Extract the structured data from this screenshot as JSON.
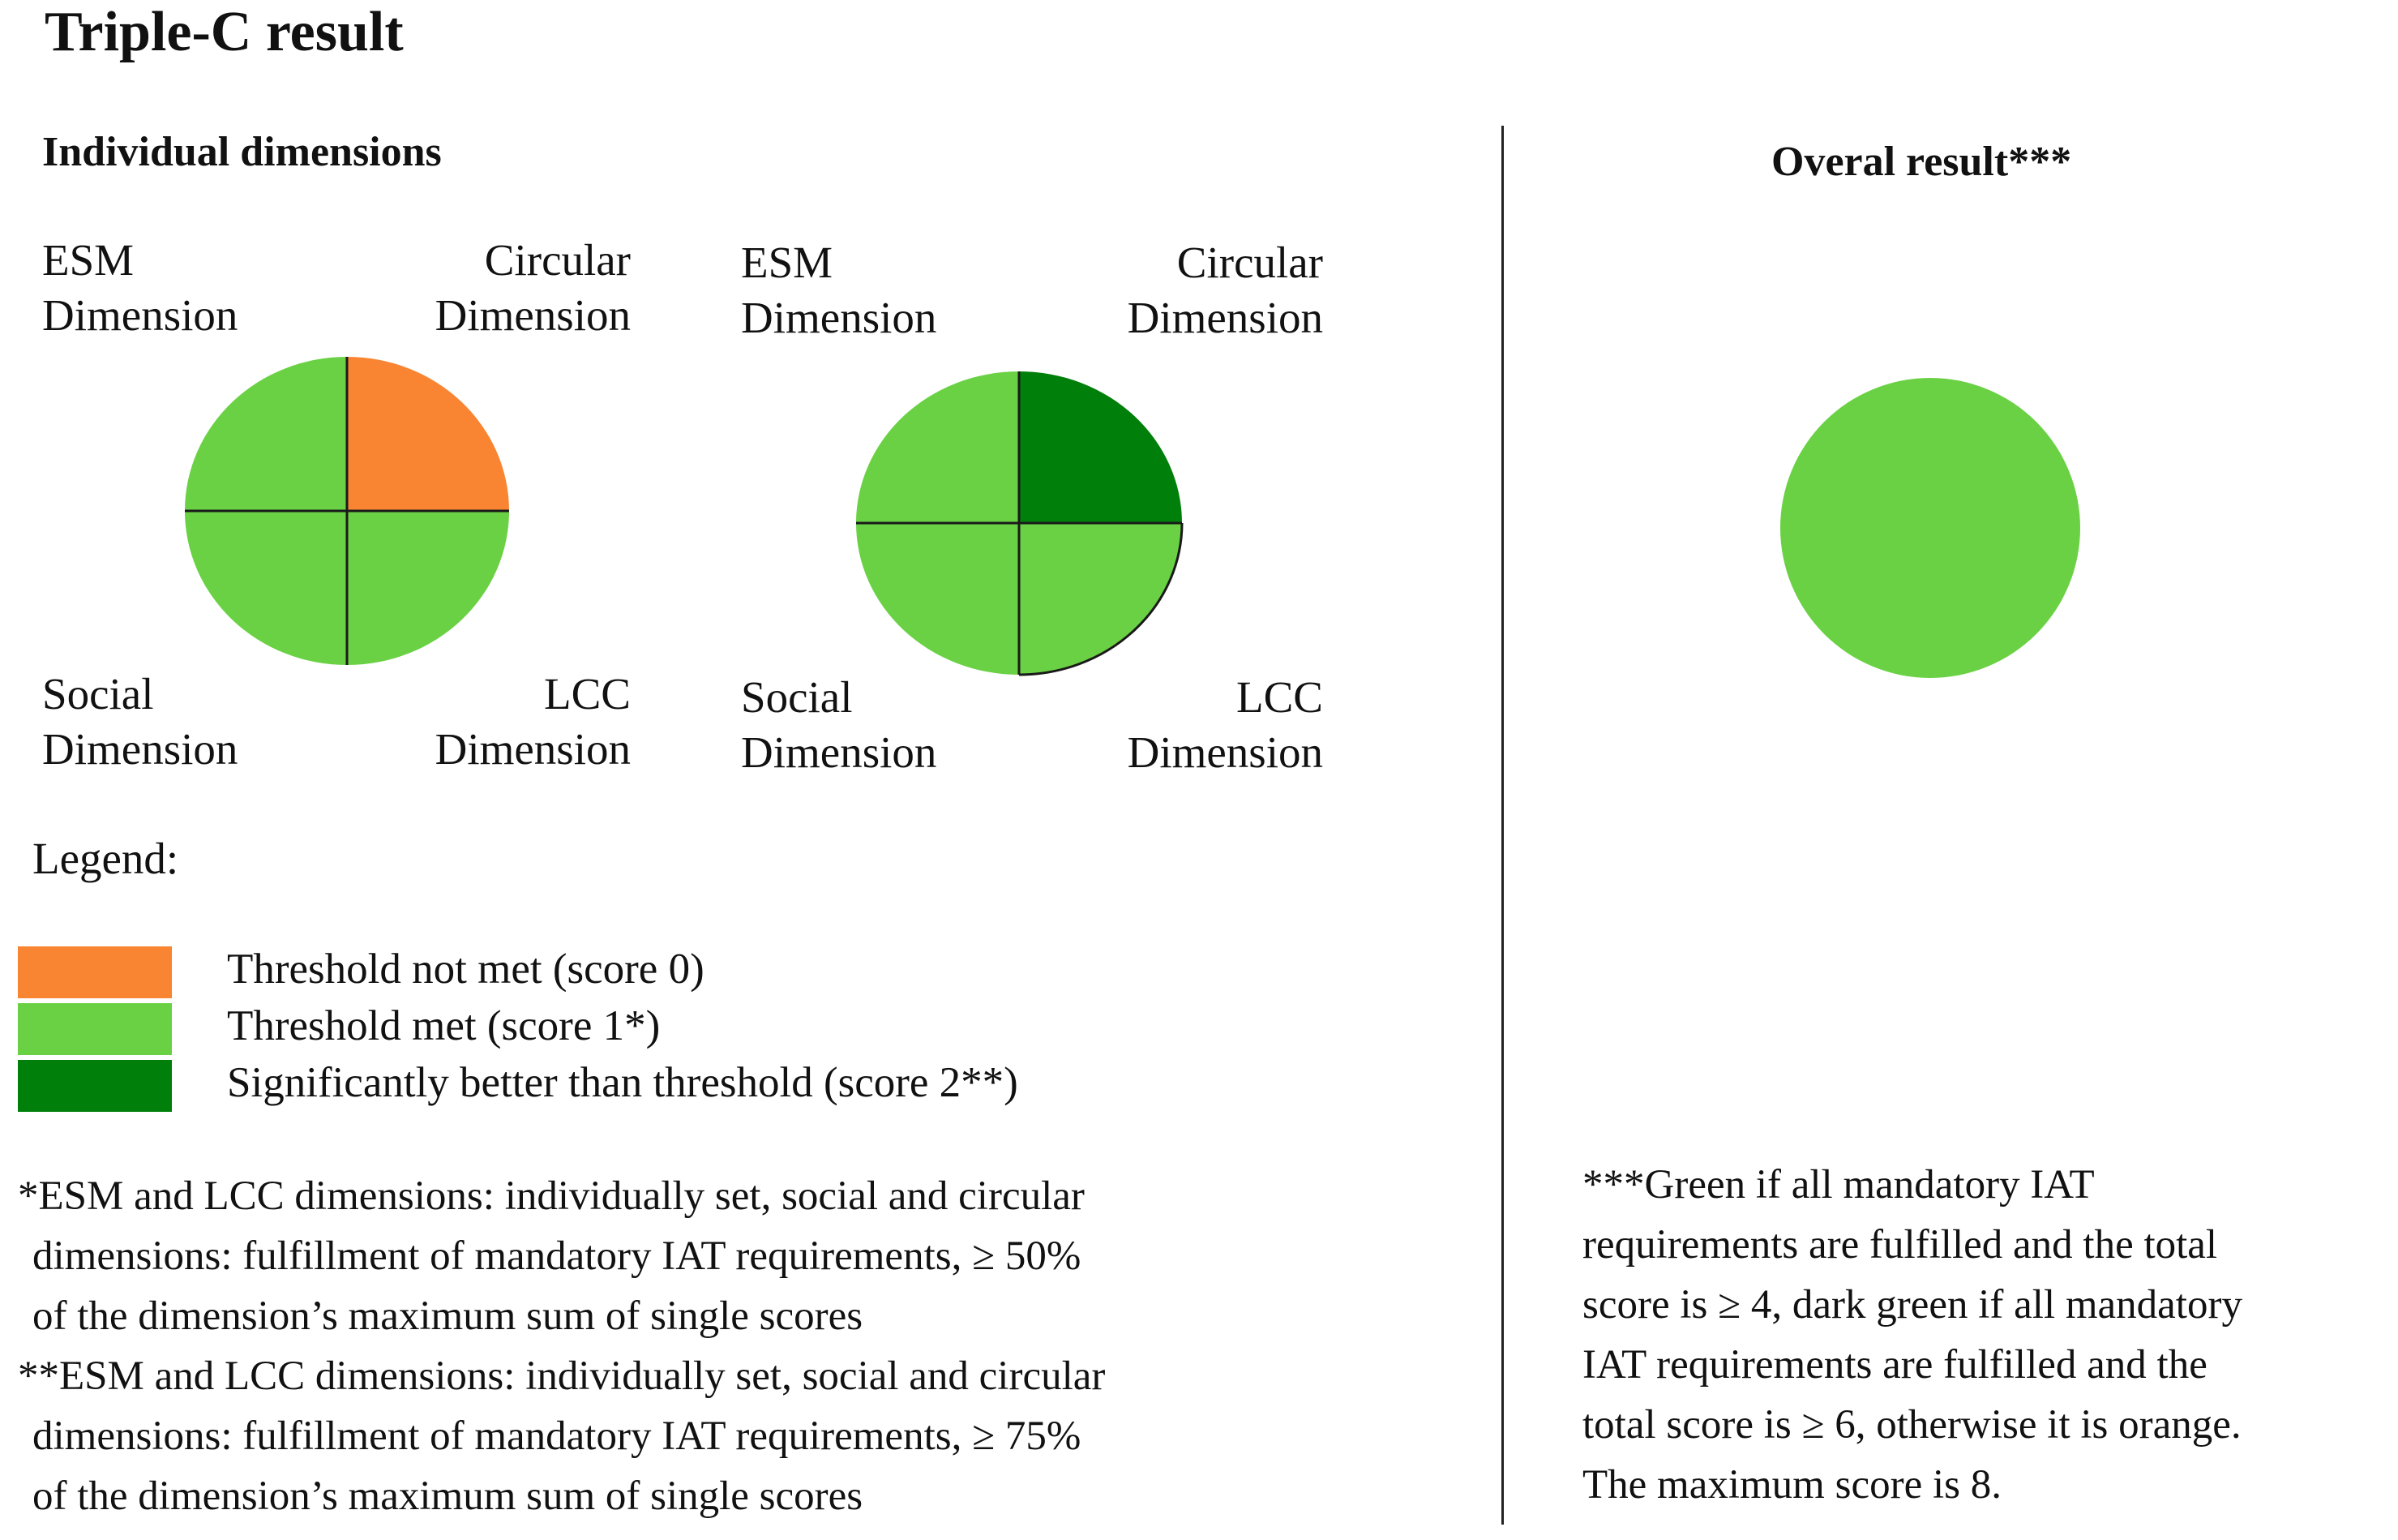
{
  "title": "Triple-C  result",
  "left_heading": "Individual dimensions",
  "right_heading": "Overal result***",
  "charts": [
    {
      "labels": {
        "top_left": [
          "ESM",
          "Dimension"
        ],
        "top_right": [
          "Circular",
          "Dimension"
        ],
        "bottom_left": [
          "Social",
          "Dimension"
        ],
        "bottom_right": [
          "LCC",
          "Dimension"
        ]
      },
      "quadrants": {
        "circular": 0,
        "esm": 1,
        "social": 1,
        "lcc": 1
      }
    },
    {
      "labels": {
        "top_left": [
          "ESM",
          "Dimension"
        ],
        "top_right": [
          "Circular",
          "Dimension"
        ],
        "bottom_left": [
          "Social",
          "Dimension"
        ],
        "bottom_right": [
          "LCC",
          "Dimension"
        ]
      },
      "quadrants": {
        "circular": 2,
        "esm": 1,
        "social": 1,
        "lcc": 1
      }
    }
  ],
  "overall_score_level": 1,
  "colors": {
    "score0": "#F98431",
    "score1": "#6AD144",
    "score2": "#00800A",
    "line": "#1a1a1a"
  },
  "legend": {
    "title": "Legend:",
    "items": [
      {
        "score": 0,
        "label": "Threshold not met (score 0)"
      },
      {
        "score": 1,
        "label": "Threshold met (score 1*)"
      },
      {
        "score": 2,
        "label": "Significantly  better than threshold (score 2**)"
      }
    ]
  },
  "footnotes": {
    "single_star": [
      "*ESM and LCC dimensions: individually  set, social and circular",
      "dimensions: fulfillment  of mandatory IAT requirements, ≥ 50%",
      "of the dimension’s maximum sum of single scores"
    ],
    "double_star": [
      "**ESM and LCC dimensions: individually  set, social and circular",
      "dimensions: fulfillment  of mandatory IAT requirements, ≥ 75%",
      "of the dimension’s maximum sum of single scores"
    ],
    "triple_star": [
      "***Green if all mandatory IAT",
      "requirements are fulfilled  and the total",
      "score is ≥  4, dark green if all mandatory",
      "IAT requirements are fulfilled  and the",
      "total score is ≥ 6, otherwise it is orange.",
      "The maximum score is 8."
    ]
  }
}
